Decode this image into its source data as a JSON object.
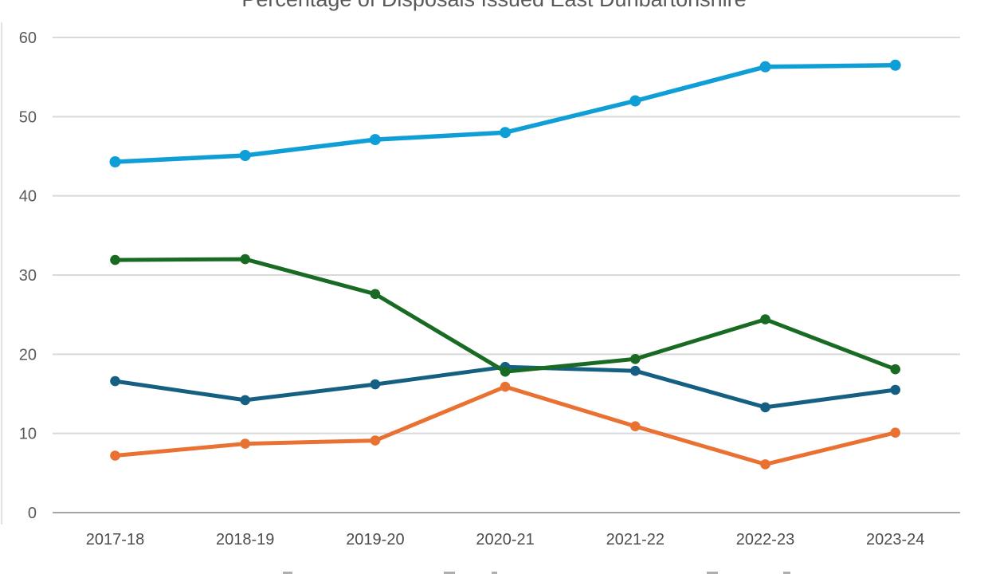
{
  "title": "Percentage of Disposals Issued East Dunbartonshire",
  "colors": {
    "accent_dark_blue": "#156082",
    "accent_orange": "#E97132",
    "accent_green": "#196B24",
    "accent_light_blue": "#0F9ED5",
    "gridline": "#D9D9D9",
    "zero_axis_line": "#A6A6A6",
    "plot_left_border": "#D9D9D9",
    "title_text": "#595959",
    "y_tick_text": "#595959",
    "x_tick_text": "#4d4d4d"
  },
  "chart_data": {
    "type": "line",
    "title": "Percentage of Disposals Issued East Dunbartonshire",
    "categories": [
      "2017-18",
      "2018-19",
      "2019-20",
      "2020-21",
      "2021-22",
      "2022-23",
      "2023-24"
    ],
    "series": [
      {
        "name": "series-dark-blue",
        "color": "#156082",
        "marker": "circle",
        "values": [
          16.6,
          14.2,
          16.2,
          18.4,
          17.9,
          13.3,
          15.5
        ]
      },
      {
        "name": "series-orange",
        "color": "#E97132",
        "marker": "circle",
        "values": [
          7.2,
          8.7,
          9.1,
          15.9,
          10.9,
          6.1,
          10.1
        ]
      },
      {
        "name": "series-green",
        "color": "#196B24",
        "marker": "circle",
        "values": [
          31.9,
          32.0,
          27.6,
          17.8,
          19.4,
          24.4,
          18.1
        ]
      },
      {
        "name": "series-light-blue",
        "color": "#0F9ED5",
        "marker": "circle",
        "values": [
          44.3,
          45.1,
          47.1,
          48.0,
          52.0,
          56.3,
          56.5
        ]
      }
    ],
    "xlabel": "",
    "ylabel": "",
    "ylim": [
      0,
      60
    ],
    "yticks": [
      0,
      10,
      20,
      30,
      40,
      50,
      60
    ],
    "y_tick_labels": [
      "0",
      "10",
      "20",
      "30",
      "40",
      "50",
      "60"
    ],
    "grid": true,
    "legend_position": "bottom (cropped out of view at image edge)"
  },
  "legend": {
    "visible_text": "",
    "note": "legend row is cut off; only tops of letters visible as faint marks",
    "fragments": [
      {
        "x": 355,
        "w": 12
      },
      {
        "x": 557,
        "w": 14
      },
      {
        "x": 617,
        "w": 7
      },
      {
        "x": 887,
        "w": 14
      },
      {
        "x": 983,
        "w": 9
      }
    ]
  }
}
